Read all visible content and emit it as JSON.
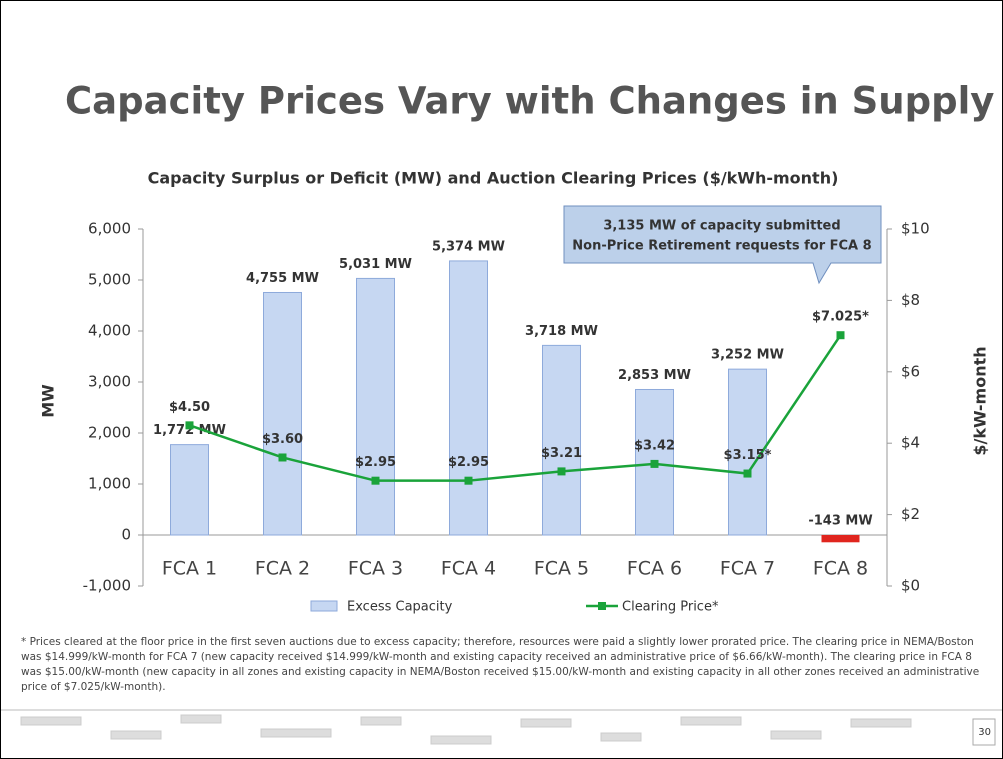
{
  "slide_title": "Capacity Prices Vary with Changes in Supply",
  "chart_data": {
    "type": "bar_line",
    "title": "Capacity Surplus or Deficit (MW) and Auction Clearing Prices ($/kWh-month)",
    "categories": [
      "FCA 1",
      "FCA 2",
      "FCA 3",
      "FCA 4",
      "FCA 5",
      "FCA 6",
      "FCA 7",
      "FCA 8"
    ],
    "series": [
      {
        "name": "Excess Capacity",
        "type": "bar",
        "color": "#c6d7f2",
        "colors": [
          "#c6d7f2",
          "#c6d7f2",
          "#c6d7f2",
          "#c6d7f2",
          "#c6d7f2",
          "#c6d7f2",
          "#c6d7f2",
          "#e0251e"
        ],
        "values": [
          1772,
          4755,
          5031,
          5374,
          3718,
          2853,
          3252,
          -143
        ],
        "value_labels": [
          "1,772 MW",
          "4,755 MW",
          "5,031 MW",
          "5,374 MW",
          "3,718 MW",
          "2,853 MW",
          "3,252 MW",
          "-143 MW"
        ]
      },
      {
        "name": "Clearing Price*",
        "type": "line",
        "axis": "y2",
        "color": "#1aa33a",
        "values": [
          4.5,
          3.6,
          2.95,
          2.95,
          3.21,
          3.42,
          3.15,
          7.025
        ],
        "value_labels": [
          "$4.50",
          "$3.60",
          "$2.95",
          "$2.95",
          "$3.21",
          "$3.42",
          "$3.15*",
          "$7.025*"
        ]
      }
    ],
    "ylabel": "MW",
    "y2label": "$/kW-month",
    "ylim": [
      -1000,
      6000
    ],
    "yticks": [
      {
        "value": -1000,
        "label": "-1,000"
      },
      0,
      {
        "value": 1000,
        "label": "1,000"
      },
      {
        "value": 2000,
        "label": "2,000"
      },
      {
        "value": 3000,
        "label": "3,000"
      },
      {
        "value": 4000,
        "label": "4,000"
      },
      {
        "value": 5000,
        "label": "5,000"
      },
      {
        "value": 6000,
        "label": "6,000"
      }
    ],
    "y2lim": [
      0,
      10
    ],
    "y2ticks": [
      {
        "value": 0,
        "label": "$0"
      },
      {
        "value": 2,
        "label": "$2"
      },
      {
        "value": 4,
        "label": "$4"
      },
      {
        "value": 6,
        "label": "$6"
      },
      {
        "value": 8,
        "label": "$8"
      },
      {
        "value": 10,
        "label": "$10"
      }
    ],
    "annotation": [
      "3,135 MW of capacity submitted",
      "Non-Price Retirement requests for FCA 8"
    ],
    "legend": "bottom"
  },
  "footnote": "* Prices cleared at the floor price in the first seven auctions due to excess capacity; therefore, resources were paid a slightly lower prorated price. The clearing price in NEMA/Boston was $14.999/kW-month for FCA 7 (new capacity received $14.999/kW-month and existing capacity received an administrative price of $6.66/kW-month). The clearing price in FCA 8 was $15.00/kW-month (new capacity in all zones and existing capacity in NEMA/Boston received $15.00/kW-month and existing capacity in all other zones received an administrative price of $7.025/kW-month).",
  "page_number": "30"
}
